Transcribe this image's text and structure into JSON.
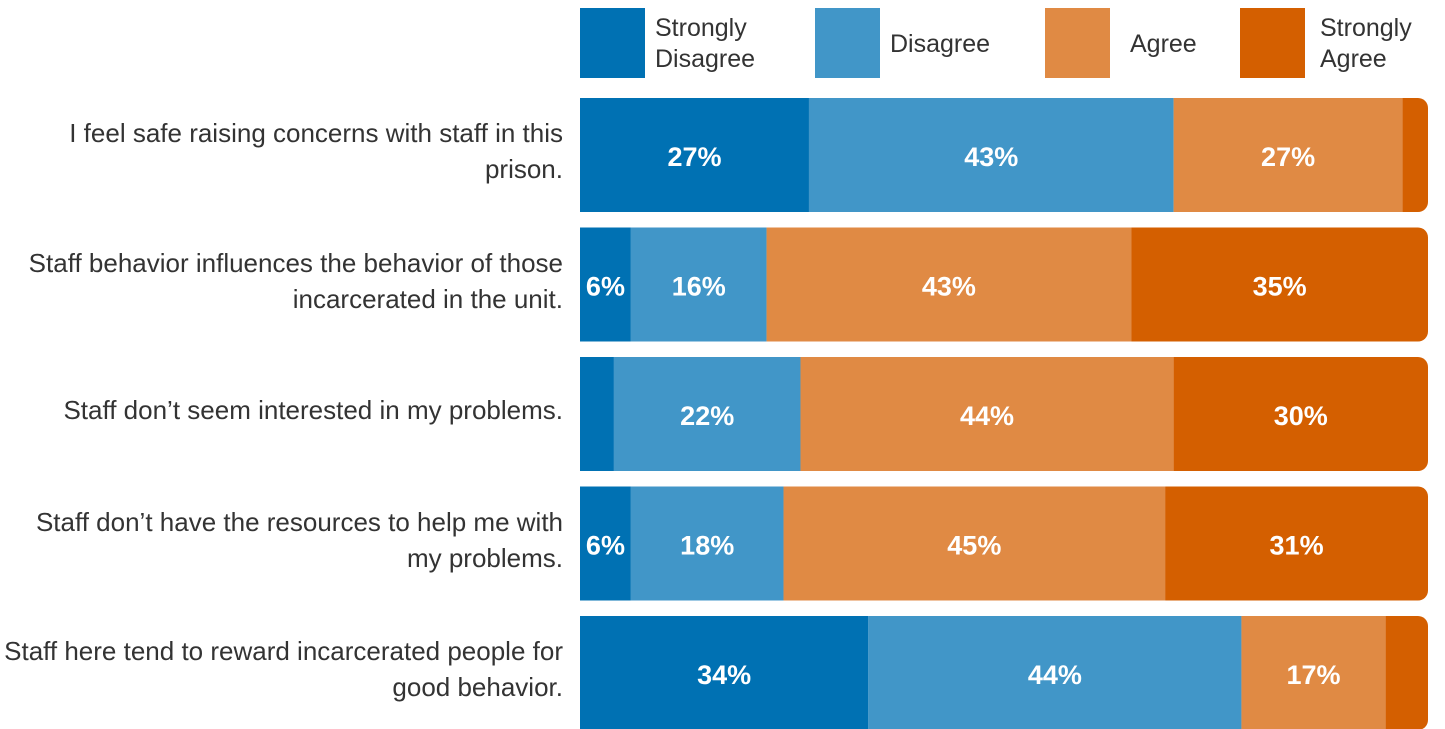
{
  "chart_data": {
    "type": "stacked-bar",
    "orientation": "horizontal",
    "categories": [
      "I feel safe raising concerns with staff in this prison.",
      "Staff behavior influences the behavior of those incarcerated in the unit.",
      "Staff don’t seem interested in my problems.",
      "Staff don’t have the resources to help me with my problems.",
      "Staff here tend to reward incarcerated people for good behavior."
    ],
    "xlim": [
      0,
      100
    ],
    "legend": "top",
    "series": [
      {
        "name": "Strongly Disagree",
        "color": "#0071b3",
        "values": [
          27,
          6,
          4,
          6,
          34
        ],
        "value_labels": [
          "27%",
          "6%",
          null,
          "6%",
          "34%"
        ]
      },
      {
        "name": "Disagree",
        "color": "#4196c8",
        "values": [
          43,
          16,
          22,
          18,
          44
        ],
        "value_labels": [
          "43%",
          "16%",
          "22%",
          "18%",
          "44%"
        ]
      },
      {
        "name": "Agree",
        "color": "#e08a44",
        "values": [
          27,
          43,
          44,
          45,
          17
        ],
        "value_labels": [
          "27%",
          "43%",
          "44%",
          "45%",
          "17%"
        ]
      },
      {
        "name": "Strongly Agree",
        "color": "#d45f00",
        "values": [
          3,
          35,
          30,
          31,
          5
        ],
        "value_labels": [
          null,
          "35%",
          "30%",
          "31%",
          null
        ]
      }
    ]
  }
}
